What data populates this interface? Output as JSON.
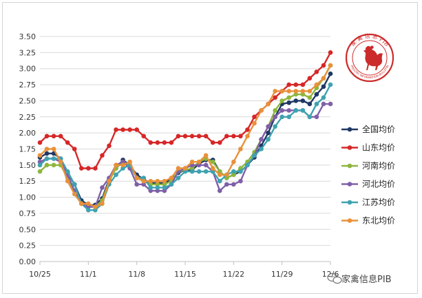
{
  "chart_data": {
    "type": "line",
    "xlabel": "",
    "ylabel": "",
    "ylim": [
      0,
      3.5
    ],
    "yticks": [
      "0.00",
      "0.25",
      "0.50",
      "0.75",
      "1.00",
      "1.25",
      "1.50",
      "1.75",
      "2.00",
      "2.25",
      "2.50",
      "2.75",
      "3.00",
      "3.25",
      "3.50"
    ],
    "x_tick_labels": [
      "10/25",
      "11/1",
      "11/8",
      "11/15",
      "11/22",
      "11/29",
      "12/6"
    ],
    "grid": "horizontal",
    "legend_position": "right",
    "x": [
      "10/25",
      "10/26",
      "10/27",
      "10/28",
      "10/29",
      "10/30",
      "10/31",
      "11/1",
      "11/2",
      "11/3",
      "11/4",
      "11/5",
      "11/6",
      "11/7",
      "11/8",
      "11/9",
      "11/10",
      "11/11",
      "11/12",
      "11/13",
      "11/14",
      "11/15",
      "11/16",
      "11/17",
      "11/18",
      "11/19",
      "11/20",
      "11/21",
      "11/22",
      "11/23",
      "11/24",
      "11/25",
      "11/26",
      "11/27",
      "11/28",
      "11/29",
      "11/30",
      "12/1",
      "12/2",
      "12/3",
      "12/4",
      "12/5",
      "12/6"
    ],
    "series": [
      {
        "name": "全国均价",
        "color": "#1f3864",
        "values": [
          1.62,
          1.68,
          1.68,
          1.6,
          1.38,
          1.2,
          0.95,
          0.88,
          0.88,
          0.98,
          1.28,
          1.45,
          1.58,
          1.5,
          1.35,
          1.28,
          1.22,
          1.22,
          1.22,
          1.28,
          1.38,
          1.42,
          1.42,
          1.52,
          1.58,
          1.58,
          1.4,
          1.3,
          1.35,
          1.4,
          1.5,
          1.62,
          1.8,
          2.0,
          2.25,
          2.45,
          2.47,
          2.5,
          2.5,
          2.45,
          2.6,
          2.72,
          2.92
        ]
      },
      {
        "name": "山东均价",
        "color": "#d62728",
        "values": [
          1.85,
          1.95,
          1.95,
          1.95,
          1.85,
          1.75,
          1.45,
          1.45,
          1.45,
          1.65,
          1.8,
          2.05,
          2.05,
          2.05,
          2.05,
          1.95,
          1.85,
          1.85,
          1.85,
          1.85,
          1.95,
          1.95,
          1.95,
          1.95,
          1.95,
          1.85,
          1.85,
          1.95,
          1.95,
          1.95,
          2.05,
          2.25,
          2.35,
          2.45,
          2.55,
          2.65,
          2.75,
          2.75,
          2.75,
          2.85,
          2.95,
          3.05,
          3.25
        ]
      },
      {
        "name": "河南均价",
        "color": "#8db63c",
        "values": [
          1.4,
          1.5,
          1.5,
          1.5,
          1.3,
          1.1,
          0.9,
          0.85,
          0.85,
          0.95,
          1.25,
          1.45,
          1.55,
          1.5,
          1.3,
          1.25,
          1.2,
          1.2,
          1.2,
          1.25,
          1.4,
          1.42,
          1.45,
          1.55,
          1.6,
          1.55,
          1.4,
          1.3,
          1.35,
          1.45,
          1.55,
          1.7,
          1.9,
          2.1,
          2.35,
          2.5,
          2.55,
          2.6,
          2.6,
          2.55,
          2.7,
          2.85,
          3.05
        ]
      },
      {
        "name": "河北均价",
        "color": "#7f5fa8",
        "values": [
          1.55,
          1.6,
          1.6,
          1.55,
          1.35,
          1.1,
          0.9,
          0.85,
          0.85,
          1.15,
          1.3,
          1.5,
          1.55,
          1.45,
          1.2,
          1.2,
          1.1,
          1.1,
          1.1,
          1.2,
          1.4,
          1.45,
          1.5,
          1.5,
          1.5,
          1.4,
          1.1,
          1.2,
          1.2,
          1.25,
          1.5,
          1.65,
          1.9,
          2.1,
          2.25,
          2.35,
          2.35,
          2.35,
          2.35,
          2.25,
          2.25,
          2.45,
          2.45
        ]
      },
      {
        "name": "江苏均价",
        "color": "#3ea2b0",
        "values": [
          1.5,
          1.6,
          1.6,
          1.6,
          1.4,
          1.2,
          0.9,
          0.8,
          0.8,
          0.9,
          1.2,
          1.35,
          1.45,
          1.5,
          1.3,
          1.3,
          1.15,
          1.15,
          1.15,
          1.2,
          1.3,
          1.4,
          1.4,
          1.4,
          1.4,
          1.4,
          1.25,
          1.35,
          1.4,
          1.4,
          1.5,
          1.65,
          1.75,
          1.9,
          2.1,
          2.25,
          2.25,
          2.35,
          2.35,
          2.25,
          2.45,
          2.55,
          2.75
        ]
      },
      {
        "name": "东北均价",
        "color": "#e8913a",
        "values": [
          1.65,
          1.75,
          1.75,
          1.55,
          1.25,
          1.05,
          0.9,
          0.9,
          0.85,
          0.9,
          1.25,
          1.5,
          1.5,
          1.55,
          1.3,
          1.25,
          1.25,
          1.25,
          1.25,
          1.3,
          1.45,
          1.45,
          1.55,
          1.55,
          1.65,
          1.45,
          1.35,
          1.35,
          1.55,
          1.75,
          1.95,
          2.15,
          2.35,
          2.45,
          2.65,
          2.65,
          2.65,
          2.65,
          2.65,
          2.65,
          2.75,
          2.85,
          3.05
        ]
      }
    ]
  },
  "stamp": {
    "top_text": "家 禽 信 息 PIB",
    "bottom_text": "POULTRY INFORMATION BULLETIN",
    "color": "#cc2b2b"
  },
  "watermark": {
    "text": "家禽信息PIB",
    "icon": "wechat-icon"
  }
}
